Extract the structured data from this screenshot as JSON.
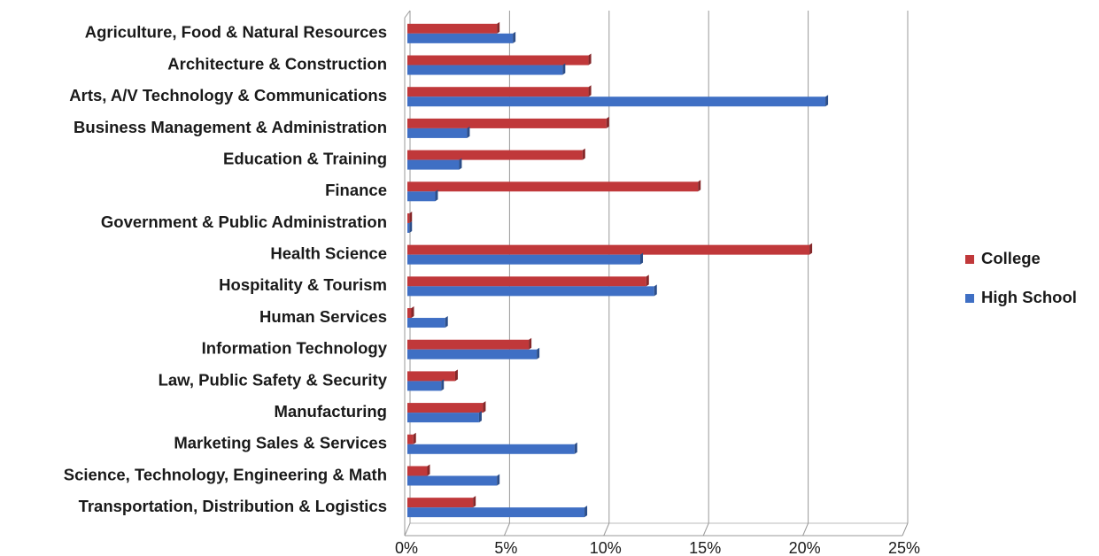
{
  "chart_data": {
    "type": "bar",
    "orientation": "horizontal",
    "categories": [
      "Agriculture, Food & Natural Resources",
      "Architecture & Construction",
      "Arts, A/V Technology & Communications",
      "Business Management & Administration",
      "Education & Training",
      "Finance",
      "Government & Public Administration",
      "Health Science",
      "Hospitality & Tourism",
      "Human Services",
      "Information Technology",
      "Law, Public Safety & Security",
      "Manufacturing",
      "Marketing Sales & Services",
      "Science, Technology, Engineering & Math",
      "Transportation, Distribution & Logistics"
    ],
    "series": [
      {
        "name": "College",
        "color": "#c0383a",
        "values": [
          4.5,
          9.1,
          9.1,
          10.0,
          8.8,
          14.6,
          0.1,
          20.2,
          12.0,
          0.2,
          6.1,
          2.4,
          3.8,
          0.3,
          1.0,
          3.3
        ]
      },
      {
        "name": "High School",
        "color": "#3f6fc4",
        "values": [
          5.3,
          7.8,
          21.0,
          3.0,
          2.6,
          1.4,
          0.1,
          11.7,
          12.4,
          1.9,
          6.5,
          1.7,
          3.6,
          8.4,
          4.5,
          8.9
        ]
      }
    ],
    "xlim": [
      0,
      25
    ],
    "xticks": [
      {
        "value": 0,
        "label": "0%"
      },
      {
        "value": 5,
        "label": "5%"
      },
      {
        "value": 10,
        "label": "10%"
      },
      {
        "value": 15,
        "label": "15%"
      },
      {
        "value": 20,
        "label": "20%"
      },
      {
        "value": 25,
        "label": "25%"
      }
    ],
    "grid": true,
    "legend": "right"
  }
}
